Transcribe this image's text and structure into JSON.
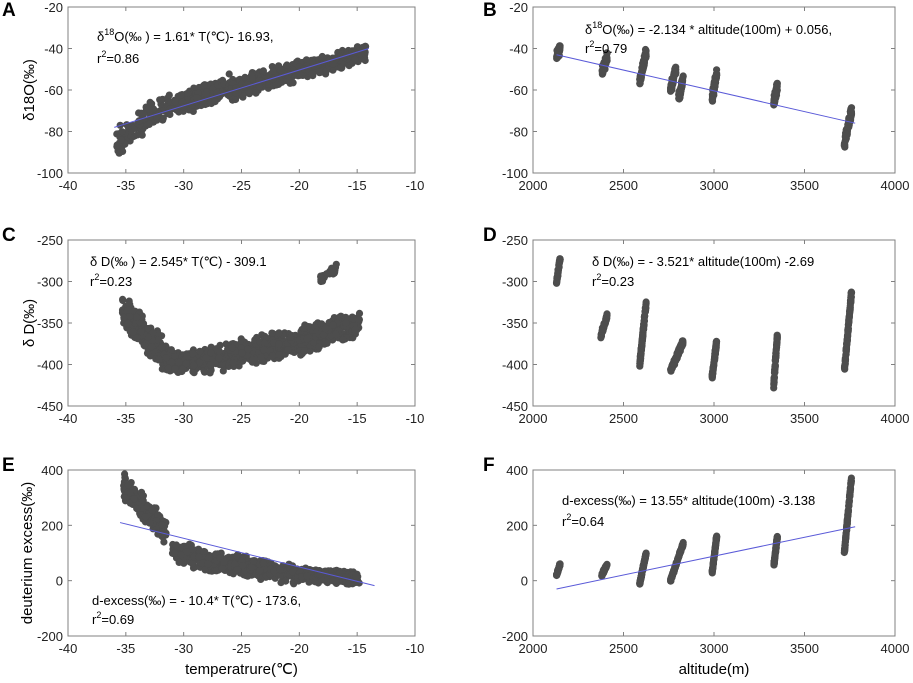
{
  "colors": {
    "points": "#4d4d4d",
    "fit": "#5a5ad8",
    "axis": "#808080"
  },
  "chart_data": [
    {
      "type": "scatter",
      "letter": "A",
      "xlim": [
        -40,
        -10
      ],
      "ylim": [
        -100,
        -20
      ],
      "xticks": [
        "-40",
        "-35",
        "-30",
        "-25",
        "-20",
        "-15",
        "-10"
      ],
      "yticks": [
        "-20",
        "-40",
        "-60",
        "-80",
        "-100"
      ],
      "ylabel": "δ18O(‰)",
      "xlabel": "",
      "annot_line1": {
        "pre": "δ",
        "sup": "18",
        "post": "O(‰ ) = 1.61* T(℃)- 16.93,"
      },
      "annot_line2": {
        "pre": "r",
        "sup": "2",
        "post": "=0.86"
      },
      "fit": {
        "x": [
          -36,
          -14
        ],
        "y": [
          -78,
          -40
        ]
      },
      "clusters": [
        {
          "x": [
            -35.8,
            -31
          ],
          "y0": -85,
          "y1": -67,
          "spread": 7,
          "n": 130
        },
        {
          "x": [
            -34,
            -32.6
          ],
          "y0": -76,
          "y1": -67,
          "spread": 4,
          "n": 30
        },
        {
          "x": [
            -30.8,
            -26
          ],
          "y0": -68,
          "y1": -58,
          "spread": 6,
          "n": 190
        },
        {
          "x": [
            -26,
            -20
          ],
          "y0": -60,
          "y1": -50,
          "spread": 6,
          "n": 260
        },
        {
          "x": [
            -20,
            -14.2
          ],
          "y0": -51,
          "y1": -42,
          "spread": 5,
          "n": 260
        }
      ]
    },
    {
      "type": "scatter",
      "letter": "B",
      "xlim": [
        2000,
        4000
      ],
      "ylim": [
        -100,
        -20
      ],
      "xticks": [
        "2000",
        "2500",
        "3000",
        "3500",
        "4000"
      ],
      "yticks": [
        "-20",
        "-40",
        "-60",
        "-80",
        "-100"
      ],
      "ylabel": "",
      "xlabel": "",
      "annot_line1": {
        "pre": "δ",
        "sup": "18",
        "post": "O(‰) = -2.134 * altitude(100m) + 0.056,"
      },
      "annot_line2": {
        "pre": "r",
        "sup": "2",
        "post": "=0.79"
      },
      "fit": {
        "x": [
          2130,
          3780
        ],
        "y": [
          -43,
          -76
        ]
      },
      "clusters": [
        {
          "x": [
            2130,
            2150
          ],
          "y0": -44,
          "y1": -40,
          "spread": 3,
          "n": 40
        },
        {
          "x": [
            2380,
            2410
          ],
          "y0": -52,
          "y1": -44,
          "spread": 3,
          "n": 45
        },
        {
          "x": [
            2590,
            2625
          ],
          "y0": -56,
          "y1": -42,
          "spread": 3,
          "n": 80
        },
        {
          "x": [
            2760,
            2790
          ],
          "y0": -60,
          "y1": -50,
          "spread": 3,
          "n": 50
        },
        {
          "x": [
            2805,
            2830
          ],
          "y0": -64,
          "y1": -54,
          "spread": 3,
          "n": 45
        },
        {
          "x": [
            2990,
            3015
          ],
          "y0": -64,
          "y1": -52,
          "spread": 3,
          "n": 60
        },
        {
          "x": [
            3330,
            3350
          ],
          "y0": -66,
          "y1": -58,
          "spread": 3,
          "n": 50
        },
        {
          "x": [
            3720,
            3760
          ],
          "y0": -86,
          "y1": -70,
          "spread": 3,
          "n": 80
        }
      ]
    },
    {
      "type": "scatter",
      "letter": "C",
      "xlim": [
        -40,
        -10
      ],
      "ylim": [
        -450,
        -250
      ],
      "xticks": [
        "-40",
        "-35",
        "-30",
        "-25",
        "-20",
        "-15",
        "-10"
      ],
      "yticks": [
        "-250",
        "-300",
        "-350",
        "-400",
        "-450"
      ],
      "ylabel": "δ D(‰)",
      "xlabel": "",
      "annot_line1": {
        "pre": "δ D(‰ ) = 2.545* T(℃) - 309.1",
        "sup": "",
        "post": ""
      },
      "annot_line2": {
        "pre": "r",
        "sup": "2",
        "post": "=0.23"
      },
      "fit": null,
      "clusters": [
        {
          "x": [
            -35.3,
            -31.5
          ],
          "y0": -335,
          "y1": -392,
          "spread": 22,
          "n": 200
        },
        {
          "x": [
            -31.5,
            -26
          ],
          "y0": -400,
          "y1": -390,
          "spread": 18,
          "n": 220
        },
        {
          "x": [
            -26,
            -20
          ],
          "y0": -388,
          "y1": -372,
          "spread": 18,
          "n": 280
        },
        {
          "x": [
            -20,
            -14.8
          ],
          "y0": -372,
          "y1": -350,
          "spread": 18,
          "n": 260
        },
        {
          "x": [
            -18.2,
            -16.8
          ],
          "y0": -298,
          "y1": -283,
          "spread": 6,
          "n": 30
        }
      ]
    },
    {
      "type": "scatter",
      "letter": "D",
      "xlim": [
        2000,
        4000
      ],
      "ylim": [
        -450,
        -250
      ],
      "xticks": [
        "2000",
        "2500",
        "3000",
        "3500",
        "4000"
      ],
      "yticks": [
        "-250",
        "-300",
        "-350",
        "-400",
        "-450"
      ],
      "ylabel": "",
      "xlabel": "",
      "annot_line1": {
        "pre": "δ D(‰) = - 3.521* altitude(100m) -2.69",
        "sup": "",
        "post": ""
      },
      "annot_line2": {
        "pre": "r",
        "sup": "2",
        "post": "=0.23"
      },
      "fit": null,
      "clusters": [
        {
          "x": [
            2130,
            2150
          ],
          "y0": -302,
          "y1": -272,
          "spread": 4,
          "n": 40
        },
        {
          "x": [
            2375,
            2410
          ],
          "y0": -365,
          "y1": -342,
          "spread": 4,
          "n": 45
        },
        {
          "x": [
            2590,
            2625
          ],
          "y0": -400,
          "y1": -325,
          "spread": 4,
          "n": 100
        },
        {
          "x": [
            2760,
            2830
          ],
          "y0": -408,
          "y1": -372,
          "spread": 4,
          "n": 90
        },
        {
          "x": [
            2990,
            3015
          ],
          "y0": -415,
          "y1": -372,
          "spread": 4,
          "n": 60
        },
        {
          "x": [
            3330,
            3350
          ],
          "y0": -425,
          "y1": -365,
          "spread": 4,
          "n": 60
        },
        {
          "x": [
            3720,
            3760
          ],
          "y0": -408,
          "y1": -312,
          "spread": 4,
          "n": 90
        }
      ]
    },
    {
      "type": "scatter",
      "letter": "E",
      "xlim": [
        -40,
        -10
      ],
      "ylim": [
        -200,
        400
      ],
      "xticks": [
        "-40",
        "-35",
        "-30",
        "-25",
        "-20",
        "-15",
        "-10"
      ],
      "yticks": [
        "400",
        "200",
        "0",
        "-200"
      ],
      "ylabel": "deuterium excess(‰)",
      "xlabel": "temperatrure(℃)",
      "annot_line1": {
        "pre": "d-excess(‰) = - 10.4* T(℃) - 173.6,",
        "sup": "",
        "post": ""
      },
      "annot_line2": {
        "pre": "r",
        "sup": "2",
        "post": "=0.69"
      },
      "fit": {
        "x": [
          -35.5,
          -13.5
        ],
        "y": [
          210,
          -18
        ]
      },
      "clusters": [
        {
          "x": [
            -35.2,
            -31.5
          ],
          "y0": 340,
          "y1": 180,
          "spread": 50,
          "n": 200
        },
        {
          "x": [
            -31,
            -26
          ],
          "y0": 110,
          "y1": 55,
          "spread": 45,
          "n": 220
        },
        {
          "x": [
            -26,
            -20
          ],
          "y0": 60,
          "y1": 20,
          "spread": 40,
          "n": 260
        },
        {
          "x": [
            -20,
            -14.8
          ],
          "y0": 25,
          "y1": 3,
          "spread": 28,
          "n": 240
        }
      ]
    },
    {
      "type": "scatter",
      "letter": "F",
      "xlim": [
        2000,
        4000
      ],
      "ylim": [
        -200,
        400
      ],
      "xticks": [
        "2000",
        "2500",
        "3000",
        "3500",
        "4000"
      ],
      "yticks": [
        "400",
        "200",
        "0",
        "-200"
      ],
      "ylabel": "",
      "xlabel": "altitude(m)",
      "annot_line1": {
        "pre": "d-excess(‰) = 13.55* altitude(100m) -3.138",
        "sup": "",
        "post": ""
      },
      "annot_line2": {
        "pre": "r",
        "sup": "2",
        "post": "=0.64"
      },
      "fit": {
        "x": [
          2130,
          3780
        ],
        "y": [
          -30,
          195
        ]
      },
      "clusters": [
        {
          "x": [
            2130,
            2150
          ],
          "y0": 20,
          "y1": 60,
          "spread": 6,
          "n": 40
        },
        {
          "x": [
            2380,
            2410
          ],
          "y0": 20,
          "y1": 60,
          "spread": 6,
          "n": 45
        },
        {
          "x": [
            2590,
            2625
          ],
          "y0": -10,
          "y1": 100,
          "spread": 6,
          "n": 100
        },
        {
          "x": [
            2760,
            2830
          ],
          "y0": 0,
          "y1": 135,
          "spread": 6,
          "n": 100
        },
        {
          "x": [
            2990,
            3015
          ],
          "y0": 30,
          "y1": 160,
          "spread": 6,
          "n": 70
        },
        {
          "x": [
            3330,
            3350
          ],
          "y0": 50,
          "y1": 160,
          "spread": 6,
          "n": 60
        },
        {
          "x": [
            3720,
            3760
          ],
          "y0": 100,
          "y1": 375,
          "spread": 6,
          "n": 100
        }
      ]
    }
  ]
}
